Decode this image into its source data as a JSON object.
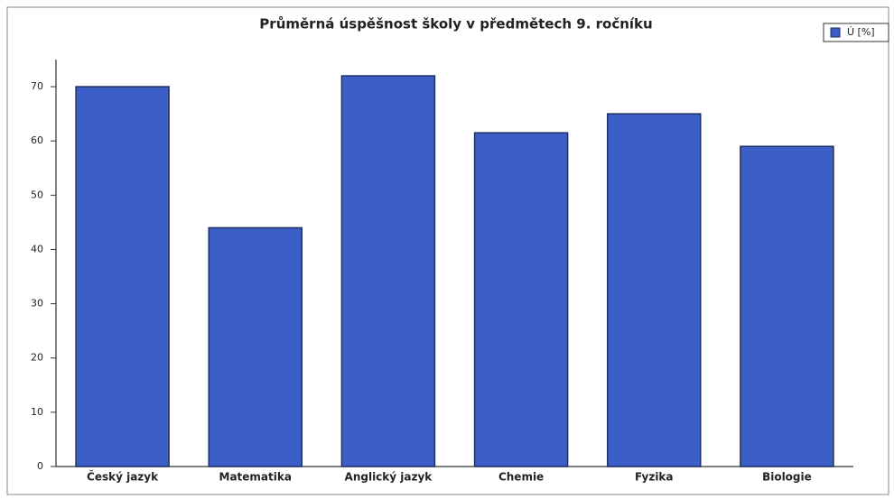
{
  "chart_data": {
    "type": "bar",
    "title": "Průměrná úspěšnost školy v předmětech 9. ročníku",
    "categories": [
      "Český jazyk",
      "Matematika",
      "Anglický jazyk",
      "Chemie",
      "Fyzika",
      "Biologie"
    ],
    "series": [
      {
        "name": "Ú [%]",
        "color": "#3b5fc6",
        "values": [
          70,
          44,
          72,
          61.5,
          65,
          59
        ]
      }
    ],
    "ylim": [
      0,
      75
    ],
    "yticks": [
      0,
      10,
      20,
      30,
      40,
      50,
      60,
      70
    ],
    "grid": false,
    "legend": "top-right"
  }
}
